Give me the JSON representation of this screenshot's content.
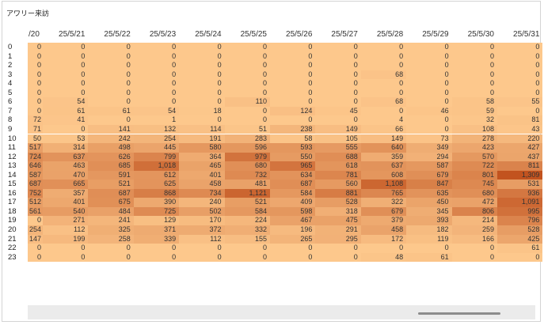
{
  "title": "アワリー来訪",
  "columns": [
    "/20",
    "25/5/21",
    "25/5/22",
    "25/5/23",
    "25/5/24",
    "25/5/25",
    "25/5/26",
    "25/5/27",
    "25/5/28",
    "25/5/29",
    "25/5/30",
    "25/5/31"
  ],
  "rows": [
    {
      "hour": "0",
      "cells": [
        "0",
        "0",
        "0",
        "0",
        "0",
        "0",
        "0",
        "0",
        "0",
        "0",
        "0",
        "0"
      ]
    },
    {
      "hour": "1",
      "cells": [
        "0",
        "0",
        "0",
        "0",
        "0",
        "0",
        "0",
        "0",
        "0",
        "0",
        "0",
        "0"
      ]
    },
    {
      "hour": "2",
      "cells": [
        "0",
        "0",
        "0",
        "0",
        "0",
        "0",
        "0",
        "0",
        "0",
        "0",
        "0",
        "0"
      ]
    },
    {
      "hour": "3",
      "cells": [
        "0",
        "0",
        "0",
        "0",
        "0",
        "0",
        "0",
        "0",
        "68",
        "0",
        "0",
        "0"
      ]
    },
    {
      "hour": "4",
      "cells": [
        "0",
        "0",
        "0",
        "0",
        "0",
        "0",
        "0",
        "0",
        "0",
        "0",
        "0",
        "0"
      ]
    },
    {
      "hour": "5",
      "cells": [
        "0",
        "0",
        "0",
        "0",
        "0",
        "0",
        "0",
        "0",
        "0",
        "0",
        "0",
        "0"
      ]
    },
    {
      "hour": "6",
      "cells": [
        "0",
        "54",
        "0",
        "0",
        "0",
        "110",
        "0",
        "0",
        "68",
        "0",
        "58",
        "55"
      ]
    },
    {
      "hour": "7",
      "cells": [
        "0",
        "61",
        "61",
        "54",
        "18",
        "0",
        "124",
        "45",
        "0",
        "46",
        "59",
        "0"
      ]
    },
    {
      "hour": "8",
      "cells": [
        "72",
        "41",
        "0",
        "1",
        "0",
        "0",
        "0",
        "0",
        "4",
        "0",
        "32",
        "81"
      ]
    },
    {
      "hour": "9",
      "cells": [
        "71",
        "0",
        "141",
        "132",
        "114",
        "51",
        "238",
        "149",
        "66",
        "0",
        "108",
        "43"
      ]
    },
    {
      "hour": "10",
      "cells": [
        "50",
        "53",
        "242",
        "254",
        "191",
        "283",
        "58",
        "105",
        "149",
        "73",
        "278",
        "220"
      ]
    },
    {
      "hour": "11",
      "cells": [
        "517",
        "314",
        "498",
        "445",
        "580",
        "596",
        "593",
        "555",
        "640",
        "349",
        "423",
        "427"
      ]
    },
    {
      "hour": "12",
      "cells": [
        "724",
        "637",
        "626",
        "799",
        "364",
        "979",
        "550",
        "688",
        "359",
        "294",
        "570",
        "437"
      ]
    },
    {
      "hour": "13",
      "cells": [
        "646",
        "463",
        "685",
        "1,018",
        "465",
        "680",
        "965",
        "618",
        "637",
        "587",
        "722",
        "811"
      ]
    },
    {
      "hour": "14",
      "cells": [
        "587",
        "470",
        "591",
        "612",
        "401",
        "732",
        "634",
        "781",
        "608",
        "679",
        "801",
        "1,309"
      ]
    },
    {
      "hour": "15",
      "cells": [
        "687",
        "665",
        "521",
        "625",
        "458",
        "481",
        "687",
        "560",
        "1,108",
        "847",
        "745",
        "531"
      ]
    },
    {
      "hour": "16",
      "cells": [
        "752",
        "357",
        "687",
        "868",
        "734",
        "1,121",
        "584",
        "881",
        "765",
        "635",
        "680",
        "936"
      ]
    },
    {
      "hour": "17",
      "cells": [
        "512",
        "401",
        "675",
        "390",
        "240",
        "521",
        "409",
        "528",
        "322",
        "450",
        "472",
        "1,091"
      ]
    },
    {
      "hour": "18",
      "cells": [
        "561",
        "540",
        "484",
        "725",
        "502",
        "584",
        "598",
        "318",
        "679",
        "345",
        "806",
        "995"
      ]
    },
    {
      "hour": "19",
      "cells": [
        "0",
        "271",
        "241",
        "129",
        "170",
        "224",
        "467",
        "475",
        "379",
        "393",
        "214",
        "796"
      ]
    },
    {
      "hour": "20",
      "cells": [
        "254",
        "112",
        "325",
        "371",
        "372",
        "332",
        "196",
        "291",
        "458",
        "182",
        "259",
        "528"
      ]
    },
    {
      "hour": "21",
      "cells": [
        "147",
        "199",
        "258",
        "339",
        "112",
        "155",
        "265",
        "295",
        "172",
        "119",
        "166",
        "425"
      ]
    },
    {
      "hour": "22",
      "cells": [
        "0",
        "0",
        "0",
        "0",
        "0",
        "0",
        "0",
        "0",
        "0",
        "0",
        "0",
        "61"
      ]
    },
    {
      "hour": "23",
      "cells": [
        "0",
        "0",
        "0",
        "0",
        "0",
        "0",
        "0",
        "0",
        "48",
        "61",
        "0",
        "0"
      ]
    }
  ],
  "colors": {
    "low": "#fdc88c",
    "high": "#c2531f"
  }
}
